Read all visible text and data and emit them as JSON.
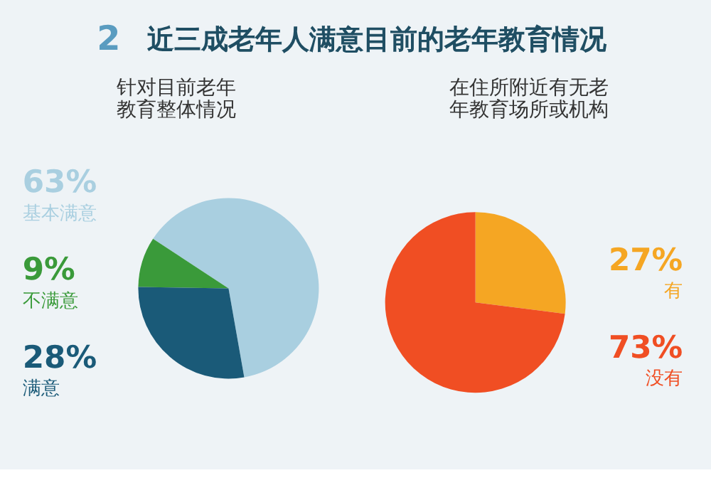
{
  "chart_data": [
    {
      "type": "other",
      "title": "近三成老年人满意目前的老年教育情况",
      "annotations": [
        "2"
      ]
    },
    {
      "type": "pie",
      "title": "针对目前老年教育整体情况",
      "categories": [
        "基本满意",
        "不满意",
        "满意"
      ],
      "values": [
        63,
        9,
        28
      ],
      "value_labels": [
        "63%",
        "9%",
        "28%"
      ],
      "colors": [
        "#a9cfe0",
        "#3a9a3a",
        "#1a5a78"
      ]
    },
    {
      "type": "pie",
      "title": "在住所附近有无老年教育场所或机构",
      "categories": [
        "有",
        "没有"
      ],
      "values": [
        27,
        73
      ],
      "value_labels": [
        "27%",
        "73%"
      ],
      "colors": [
        "#f5a623",
        "#f04e23"
      ]
    }
  ]
}
